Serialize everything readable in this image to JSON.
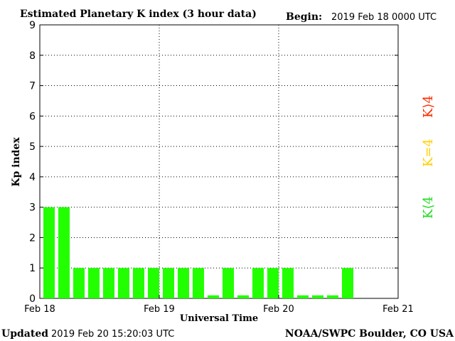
{
  "header": {
    "title": "Estimated Planetary K index (3 hour data)",
    "begin_label": "Begin:",
    "begin_value": "2019 Feb 18 0000 UTC"
  },
  "footer": {
    "updated_label": "Updated",
    "updated_value": "2019 Feb 20 15:20:03 UTC",
    "source": "NOAA/SWPC Boulder, CO USA"
  },
  "legend": {
    "storm": {
      "label": "K⟩4",
      "color": "#ff2a00"
    },
    "active": {
      "label": "K=4",
      "color": "#ffd000"
    },
    "quiet": {
      "label": "K⟨4",
      "color": "#22dd22"
    }
  },
  "chart_data": {
    "type": "bar",
    "title": "Estimated Planetary K index (3 hour data)",
    "xlabel": "Universal Time",
    "ylabel": "Kp index",
    "ylim": [
      0,
      9
    ],
    "yticks": [
      "0",
      "1",
      "2",
      "3",
      "4",
      "5",
      "6",
      "7",
      "8",
      "9"
    ],
    "xticks": [
      "Feb 18",
      "Feb 19",
      "Feb 20",
      "Feb 21"
    ],
    "xlim": [
      "2019-02-18 00:00",
      "2019-02-21 00:00"
    ],
    "interval_hours": 3,
    "grid": true,
    "bar_color": "#22ff00",
    "values": [
      3,
      3,
      1,
      1,
      1,
      1,
      1,
      1,
      1,
      1,
      1,
      0.1,
      1,
      0.1,
      1,
      1,
      1,
      0.1,
      0.1,
      0.1,
      1
    ]
  }
}
